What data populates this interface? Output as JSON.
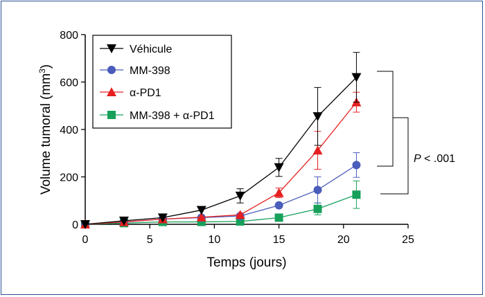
{
  "chart_data": {
    "type": "line",
    "xlabel": "Temps (jours)",
    "ylabel": "Volume tumoral (mm",
    "ylabel_sup": "3",
    "ylabel_end": ")",
    "xlim": [
      0,
      25
    ],
    "ylim": [
      0,
      800
    ],
    "xticks": [
      0,
      5,
      10,
      15,
      20,
      25
    ],
    "yticks": [
      0,
      200,
      400,
      600,
      800
    ],
    "grid": false,
    "legend_position": "top-left",
    "series": [
      {
        "name": "Véhicule",
        "color": "#000000",
        "marker": "triangle-down",
        "x": [
          0,
          3,
          6,
          9,
          12,
          15,
          18,
          21
        ],
        "y": [
          0,
          15,
          28,
          60,
          120,
          240,
          455,
          620
        ],
        "err": [
          0,
          0,
          0,
          0,
          30,
          38,
          122,
          105
        ]
      },
      {
        "name": "MM-398",
        "color": "#4a5dbb",
        "marker": "circle",
        "x": [
          0,
          3,
          6,
          9,
          12,
          15,
          18,
          21
        ],
        "y": [
          0,
          10,
          22,
          28,
          35,
          80,
          145,
          250
        ],
        "err": [
          0,
          0,
          0,
          0,
          0,
          0,
          55,
          52
        ]
      },
      {
        "name": "α-PD1",
        "color": "#e62020",
        "marker": "triangle-up",
        "x": [
          0,
          3,
          6,
          9,
          12,
          15,
          18,
          21
        ],
        "y": [
          0,
          10,
          22,
          30,
          40,
          133,
          312,
          515
        ],
        "err": [
          0,
          0,
          0,
          0,
          0,
          20,
          80,
          42
        ]
      },
      {
        "name": "MM-398 + α-PD1",
        "color": "#16a05a",
        "marker": "square",
        "x": [
          0,
          3,
          6,
          9,
          12,
          15,
          18,
          21
        ],
        "y": [
          0,
          5,
          10,
          10,
          12,
          28,
          65,
          125
        ],
        "err": [
          0,
          0,
          0,
          0,
          0,
          0,
          25,
          58
        ]
      }
    ],
    "annotation": {
      "text_italic": "P",
      "text_rest": " < .001"
    }
  }
}
